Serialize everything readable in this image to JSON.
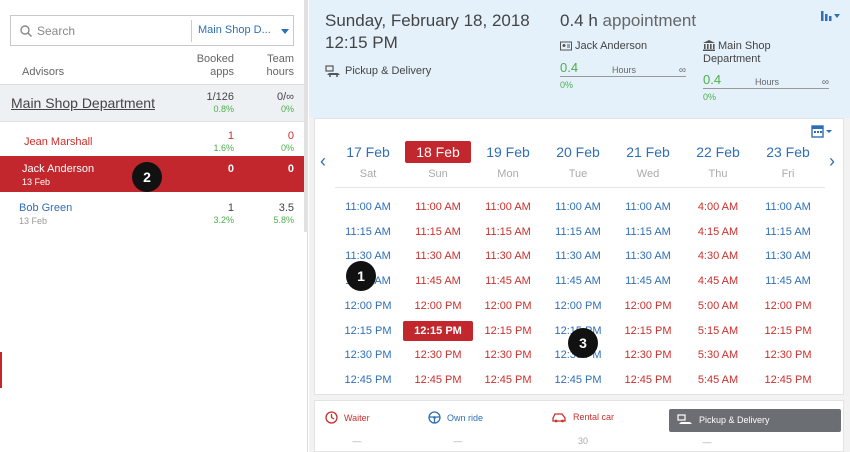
{
  "search": {
    "placeholder": "Search",
    "department": "Main Shop D..."
  },
  "list_headers": {
    "advisors": "Advisors",
    "booked_1": "Booked",
    "booked_2": "apps",
    "team_1": "Team",
    "team_2": "hours"
  },
  "department_row": {
    "name": "Main Shop Department",
    "booked": "1/126",
    "booked_pct": "0.8%",
    "hours": "0/∞",
    "hours_pct": "0%"
  },
  "advisors": [
    {
      "name": "Jean Marshall",
      "date": "",
      "booked": "1",
      "booked_pct": "1.6%",
      "hours": "0",
      "hours_pct": "0%"
    },
    {
      "name": "Jack Anderson",
      "date": "13 Feb",
      "booked": "0",
      "booked_pct": "",
      "hours": "0",
      "hours_pct": ""
    },
    {
      "name": "Bob Green",
      "date": "13 Feb",
      "booked": "1",
      "booked_pct": "3.2%",
      "hours": "3.5",
      "hours_pct": "5.8%"
    }
  ],
  "markers": [
    "1",
    "2",
    "3"
  ],
  "appointment": {
    "date": "Sunday, February 18, 2018",
    "time": "12:15 PM",
    "service": "Pickup & Delivery",
    "duration_value": "0.4 h",
    "duration_unit": "appointment",
    "advisor_name": "Jack Anderson",
    "advisor_hours_value": "0.4",
    "advisor_hours_label": "Hours",
    "advisor_hours_max": "∞",
    "advisor_pct": "0%",
    "dept_name_1": "Main Shop",
    "dept_name_2": "Department",
    "dept_hours_value": "0.4",
    "dept_hours_label": "Hours",
    "dept_hours_max": "∞",
    "dept_pct": "0%"
  },
  "calendar": {
    "days": [
      {
        "label": "17 Feb",
        "name": "Sat",
        "selected": false
      },
      {
        "label": "18 Feb",
        "name": "Sun",
        "selected": true
      },
      {
        "label": "19 Feb",
        "name": "Mon",
        "selected": false
      },
      {
        "label": "20 Feb",
        "name": "Tue",
        "selected": false
      },
      {
        "label": "21 Feb",
        "name": "Wed",
        "selected": false
      },
      {
        "label": "22 Feb",
        "name": "Thu",
        "selected": false
      },
      {
        "label": "23 Feb",
        "name": "Fri",
        "selected": false
      }
    ],
    "slots": [
      [
        {
          "t": "11:00 AM",
          "s": "b"
        },
        {
          "t": "11:15 AM",
          "s": "b"
        },
        {
          "t": "11:30 AM",
          "s": "b"
        },
        {
          "t": "11:45 AM",
          "s": "b"
        },
        {
          "t": "12:00 PM",
          "s": "b"
        },
        {
          "t": "12:15 PM",
          "s": "b"
        },
        {
          "t": "12:30 PM",
          "s": "b"
        },
        {
          "t": "12:45 PM",
          "s": "b"
        }
      ],
      [
        {
          "t": "11:00 AM",
          "s": "r"
        },
        {
          "t": "11:15 AM",
          "s": "r"
        },
        {
          "t": "11:30 AM",
          "s": "r"
        },
        {
          "t": "11:45 AM",
          "s": "r"
        },
        {
          "t": "12:00 PM",
          "s": "r"
        },
        {
          "t": "12:15 PM",
          "s": "s"
        },
        {
          "t": "12:30 PM",
          "s": "r"
        },
        {
          "t": "12:45 PM",
          "s": "r"
        }
      ],
      [
        {
          "t": "11:00 AM",
          "s": "r"
        },
        {
          "t": "11:15 AM",
          "s": "r"
        },
        {
          "t": "11:30 AM",
          "s": "r"
        },
        {
          "t": "11:45 AM",
          "s": "r"
        },
        {
          "t": "12:00 PM",
          "s": "r"
        },
        {
          "t": "12:15 PM",
          "s": "r"
        },
        {
          "t": "12:30 PM",
          "s": "r"
        },
        {
          "t": "12:45 PM",
          "s": "r"
        }
      ],
      [
        {
          "t": "11:00 AM",
          "s": "b"
        },
        {
          "t": "11:15 AM",
          "s": "b"
        },
        {
          "t": "11:30 AM",
          "s": "b"
        },
        {
          "t": "11:45 AM",
          "s": "b"
        },
        {
          "t": "12:00 PM",
          "s": "b"
        },
        {
          "t": "12:15 PM",
          "s": "b"
        },
        {
          "t": "12:30 PM",
          "s": "b"
        },
        {
          "t": "12:45 PM",
          "s": "b"
        }
      ],
      [
        {
          "t": "11:00 AM",
          "s": "b"
        },
        {
          "t": "11:15 AM",
          "s": "b"
        },
        {
          "t": "11:30 AM",
          "s": "b"
        },
        {
          "t": "11:45 AM",
          "s": "b"
        },
        {
          "t": "12:00 PM",
          "s": "r"
        },
        {
          "t": "12:15 PM",
          "s": "r"
        },
        {
          "t": "12:30 PM",
          "s": "r"
        },
        {
          "t": "12:45 PM",
          "s": "r"
        }
      ],
      [
        {
          "t": "4:00 AM",
          "s": "r"
        },
        {
          "t": "4:15 AM",
          "s": "r"
        },
        {
          "t": "4:30 AM",
          "s": "r"
        },
        {
          "t": "4:45 AM",
          "s": "r"
        },
        {
          "t": "5:00 AM",
          "s": "r"
        },
        {
          "t": "5:15 AM",
          "s": "r"
        },
        {
          "t": "5:30 AM",
          "s": "r"
        },
        {
          "t": "5:45 AM",
          "s": "r"
        }
      ],
      [
        {
          "t": "11:00 AM",
          "s": "b"
        },
        {
          "t": "11:15 AM",
          "s": "b"
        },
        {
          "t": "11:30 AM",
          "s": "b"
        },
        {
          "t": "11:45 AM",
          "s": "b"
        },
        {
          "t": "12:00 PM",
          "s": "r"
        },
        {
          "t": "12:15 PM",
          "s": "r"
        },
        {
          "t": "12:30 PM",
          "s": "r"
        },
        {
          "t": "12:45 PM",
          "s": "r"
        }
      ]
    ]
  },
  "transport_options": {
    "waiter": {
      "label": "Waiter",
      "count": "—"
    },
    "own_ride": {
      "label": "Own ride",
      "count": "—"
    },
    "rental_car": {
      "label": "Rental car",
      "count": "30"
    },
    "pickup": {
      "label": "Pickup & Delivery",
      "count": "—"
    }
  },
  "colors": {
    "accent_red": "#c1272d",
    "link_blue": "#2f6fb5",
    "positive_green": "#4cae4c",
    "info_bg": "#e4f1fb",
    "selected_option_bg": "#6b6e72"
  }
}
